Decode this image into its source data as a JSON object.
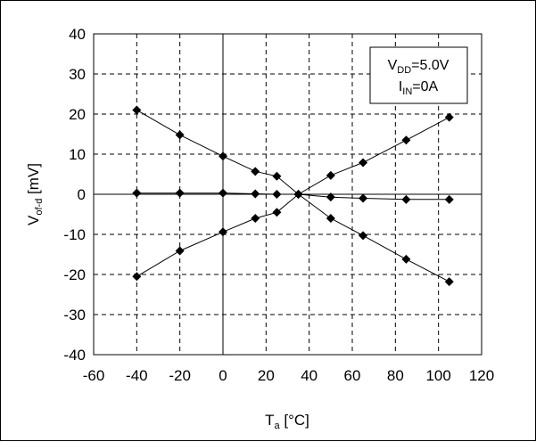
{
  "chart_data": {
    "type": "scatter",
    "title": "",
    "xlabel": {
      "main": "T",
      "sub": "a",
      "rest": " [°C]"
    },
    "ylabel": {
      "main": "V",
      "sub": "of-d",
      "rest": " [mV]"
    },
    "xlim": [
      -60,
      120
    ],
    "ylim": [
      -40,
      40
    ],
    "xticks": [
      -60,
      -40,
      -20,
      0,
      20,
      40,
      60,
      80,
      100,
      120
    ],
    "yticks": [
      -40,
      -30,
      -20,
      -10,
      0,
      10,
      20,
      30,
      40
    ],
    "grid": "dashed",
    "annotation": {
      "line1": {
        "main": "V",
        "sub": "DD",
        "rest": "=5.0V"
      },
      "line2": {
        "main": "I",
        "sub": "IN",
        "rest": "=0A"
      }
    },
    "series": [
      {
        "x": [
          -40,
          -20,
          0,
          15,
          25,
          35,
          50,
          65,
          85,
          105
        ],
        "y": [
          21,
          14.8,
          9.5,
          5.7,
          4.5,
          0,
          -6,
          -10.3,
          -16.2,
          -21.8
        ]
      },
      {
        "x": [
          -40,
          -20,
          0,
          15,
          25,
          35,
          50,
          65,
          85,
          105
        ],
        "y": [
          0.3,
          0.3,
          0.3,
          0.1,
          0,
          0,
          -0.7,
          -1,
          -1.3,
          -1.3
        ]
      },
      {
        "x": [
          -40,
          -20,
          0,
          15,
          25,
          35,
          50,
          65,
          85,
          105
        ],
        "y": [
          -20.5,
          -14.1,
          -9.4,
          -6,
          -4.5,
          0,
          4.7,
          7.9,
          13.5,
          19.2
        ]
      }
    ],
    "marker": "diamond",
    "color": "#000000"
  }
}
